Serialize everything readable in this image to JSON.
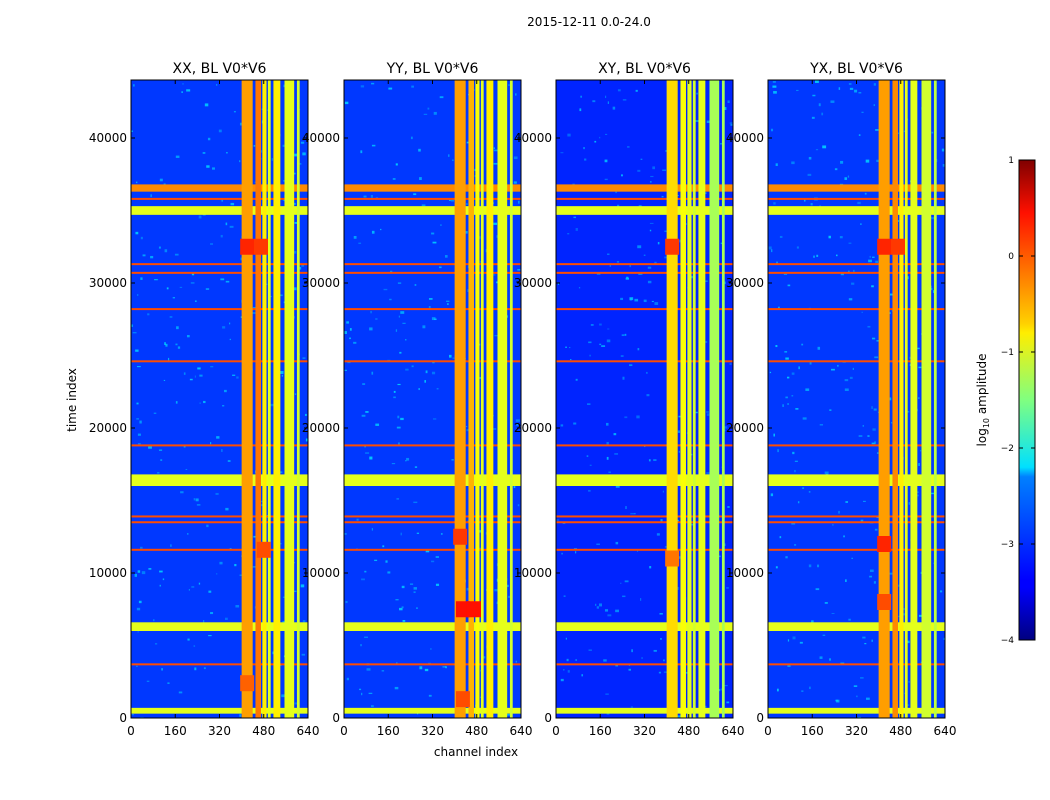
{
  "figure": {
    "suptitle": "2015-12-11 0.0-24.0",
    "ylabel": "time index",
    "xlabel": "channel index"
  },
  "colorbar": {
    "label_prefix": "log",
    "label_sub": "10",
    "label_suffix": " amplitude",
    "range": [
      -4,
      1
    ],
    "ticks": [
      1,
      0,
      -1,
      -2,
      -3,
      -4
    ],
    "tick_labels": [
      "1",
      "0",
      "−1",
      "−2",
      "−3",
      "−4"
    ],
    "colormap": "jet"
  },
  "chart_data": [
    {
      "type": "heatmap",
      "title": "XX, BL V0*V6",
      "xlim": [
        0,
        640
      ],
      "ylim": [
        0,
        44000
      ],
      "xticks": [
        0,
        160,
        320,
        480,
        640
      ],
      "xtick_labels": [
        "0",
        "160",
        "320",
        "480",
        "640"
      ],
      "yticks": [
        0,
        10000,
        20000,
        30000,
        40000
      ],
      "ytick_labels": [
        "0",
        "10000",
        "20000",
        "30000",
        "40000"
      ],
      "value_range": [
        -4,
        1
      ],
      "background_level": -3.1,
      "vertical_bands": [
        {
          "x0": 400,
          "x1": 440,
          "level": -0.4
        },
        {
          "x0": 450,
          "x1": 470,
          "level": -0.2
        },
        {
          "x0": 475,
          "x1": 490,
          "level": -0.8
        },
        {
          "x0": 495,
          "x1": 505,
          "level": -1.0
        },
        {
          "x0": 515,
          "x1": 540,
          "level": -0.8
        },
        {
          "x0": 555,
          "x1": 590,
          "level": -1.0
        },
        {
          "x0": 600,
          "x1": 610,
          "level": -1.1
        }
      ],
      "horizontal_bands": [
        {
          "y0": 300,
          "y1": 700,
          "level": -1.0
        },
        {
          "y0": 6000,
          "y1": 6600,
          "level": -1.0
        },
        {
          "y0": 16000,
          "y1": 16800,
          "level": -1.0
        },
        {
          "y0": 34700,
          "y1": 35300,
          "level": -1.0
        },
        {
          "y0": 36300,
          "y1": 36800,
          "level": -0.3
        }
      ],
      "flag_lines": [
        3700,
        11600,
        13500,
        13900,
        18800,
        24600,
        28200,
        30700,
        31300,
        35800
      ],
      "highlight_blobs": [
        {
          "x": 420,
          "y": 32500,
          "level": 0.2
        },
        {
          "x": 470,
          "y": 32500,
          "level": 0.1
        },
        {
          "x": 420,
          "y": 2400,
          "level": -0.1
        },
        {
          "x": 480,
          "y": 11600,
          "level": 0.0
        }
      ]
    },
    {
      "type": "heatmap",
      "title": "YY, BL V0*V6",
      "xlim": [
        0,
        640
      ],
      "ylim": [
        0,
        44000
      ],
      "xticks": [
        0,
        160,
        320,
        480,
        640
      ],
      "xtick_labels": [
        "0",
        "160",
        "320",
        "480",
        "640"
      ],
      "yticks": [
        0,
        10000,
        20000,
        30000,
        40000
      ],
      "ytick_labels": [
        "0",
        "10000",
        "20000",
        "30000",
        "40000"
      ],
      "value_range": [
        -4,
        1
      ],
      "background_level": -3.1,
      "vertical_bands": [
        {
          "x0": 400,
          "x1": 440,
          "level": -0.4
        },
        {
          "x0": 450,
          "x1": 470,
          "level": -0.5
        },
        {
          "x0": 475,
          "x1": 490,
          "level": -0.9
        },
        {
          "x0": 495,
          "x1": 505,
          "level": -1.0
        },
        {
          "x0": 515,
          "x1": 540,
          "level": -0.8
        },
        {
          "x0": 555,
          "x1": 590,
          "level": -1.0
        },
        {
          "x0": 600,
          "x1": 610,
          "level": -1.1
        }
      ],
      "horizontal_bands": [
        {
          "y0": 300,
          "y1": 700,
          "level": -1.0
        },
        {
          "y0": 6000,
          "y1": 6600,
          "level": -1.0
        },
        {
          "y0": 16000,
          "y1": 16800,
          "level": -1.0
        },
        {
          "y0": 34700,
          "y1": 35300,
          "level": -1.0
        },
        {
          "y0": 36300,
          "y1": 36800,
          "level": -0.3
        }
      ],
      "flag_lines": [
        3700,
        11600,
        13500,
        13900,
        18800,
        24600,
        28200,
        30700,
        31300,
        35800
      ],
      "highlight_blobs": [
        {
          "x": 430,
          "y": 7500,
          "level": 0.3
        },
        {
          "x": 470,
          "y": 7500,
          "level": 0.3
        },
        {
          "x": 420,
          "y": 12500,
          "level": 0.1
        },
        {
          "x": 430,
          "y": 1300,
          "level": 0.0
        }
      ]
    },
    {
      "type": "heatmap",
      "title": "XY, BL V0*V6",
      "xlim": [
        0,
        640
      ],
      "ylim": [
        0,
        44000
      ],
      "xticks": [
        0,
        160,
        320,
        480,
        640
      ],
      "xtick_labels": [
        "0",
        "160",
        "320",
        "480",
        "640"
      ],
      "yticks": [
        0,
        10000,
        20000,
        30000,
        40000
      ],
      "ytick_labels": [
        "0",
        "10000",
        "20000",
        "30000",
        "40000"
      ],
      "value_range": [
        -4,
        1
      ],
      "background_level": -3.2,
      "vertical_bands": [
        {
          "x0": 400,
          "x1": 440,
          "level": -0.7
        },
        {
          "x0": 450,
          "x1": 470,
          "level": -0.9
        },
        {
          "x0": 475,
          "x1": 490,
          "level": -1.0
        },
        {
          "x0": 495,
          "x1": 505,
          "level": -1.1
        },
        {
          "x0": 515,
          "x1": 540,
          "level": -1.0
        },
        {
          "x0": 555,
          "x1": 590,
          "level": -1.3
        },
        {
          "x0": 600,
          "x1": 610,
          "level": -1.3
        }
      ],
      "horizontal_bands": [
        {
          "y0": 300,
          "y1": 700,
          "level": -1.0
        },
        {
          "y0": 6000,
          "y1": 6600,
          "level": -1.0
        },
        {
          "y0": 16000,
          "y1": 16800,
          "level": -1.0
        },
        {
          "y0": 34700,
          "y1": 35300,
          "level": -1.0
        },
        {
          "y0": 36300,
          "y1": 36800,
          "level": -0.3
        }
      ],
      "flag_lines": [
        3700,
        11600,
        13500,
        13900,
        18800,
        24600,
        28200,
        30700,
        31300,
        35800
      ],
      "highlight_blobs": [
        {
          "x": 420,
          "y": 32500,
          "level": 0.1
        },
        {
          "x": 420,
          "y": 11000,
          "level": -0.2
        }
      ]
    },
    {
      "type": "heatmap",
      "title": "YX, BL V0*V6",
      "xlim": [
        0,
        640
      ],
      "ylim": [
        0,
        44000
      ],
      "xticks": [
        0,
        160,
        320,
        480,
        640
      ],
      "xtick_labels": [
        "0",
        "160",
        "320",
        "480",
        "640"
      ],
      "yticks": [
        0,
        10000,
        20000,
        30000,
        40000
      ],
      "ytick_labels": [
        "0",
        "10000",
        "20000",
        "30000",
        "40000"
      ],
      "value_range": [
        -4,
        1
      ],
      "background_level": -3.1,
      "vertical_bands": [
        {
          "x0": 400,
          "x1": 440,
          "level": -0.4
        },
        {
          "x0": 450,
          "x1": 470,
          "level": -0.3
        },
        {
          "x0": 475,
          "x1": 490,
          "level": -0.8
        },
        {
          "x0": 495,
          "x1": 505,
          "level": -1.0
        },
        {
          "x0": 515,
          "x1": 540,
          "level": -1.0
        },
        {
          "x0": 555,
          "x1": 590,
          "level": -1.1
        },
        {
          "x0": 600,
          "x1": 610,
          "level": -1.2
        }
      ],
      "horizontal_bands": [
        {
          "y0": 300,
          "y1": 700,
          "level": -1.0
        },
        {
          "y0": 6000,
          "y1": 6600,
          "level": -1.0
        },
        {
          "y0": 16000,
          "y1": 16800,
          "level": -1.0
        },
        {
          "y0": 34700,
          "y1": 35300,
          "level": -1.0
        },
        {
          "y0": 36300,
          "y1": 36800,
          "level": -0.3
        }
      ],
      "flag_lines": [
        3700,
        11600,
        13500,
        13900,
        18800,
        24600,
        28200,
        30700,
        31300,
        35800
      ],
      "highlight_blobs": [
        {
          "x": 420,
          "y": 32500,
          "level": 0.2
        },
        {
          "x": 470,
          "y": 32500,
          "level": 0.1
        },
        {
          "x": 420,
          "y": 12000,
          "level": 0.2
        },
        {
          "x": 420,
          "y": 8000,
          "level": 0.0
        }
      ]
    }
  ]
}
